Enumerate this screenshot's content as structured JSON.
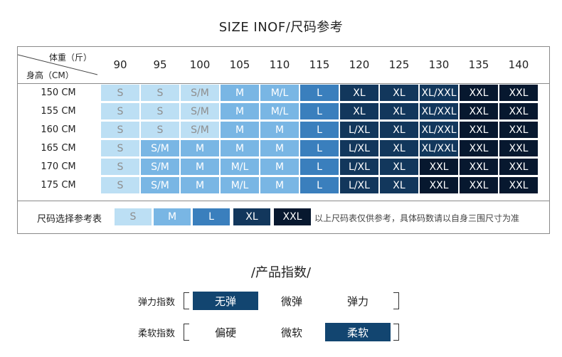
{
  "title": "SIZE INOF/尺码参考",
  "corner": {
    "weight": "体重（斤）",
    "height": "身高（CM）"
  },
  "weights": [
    "90",
    "95",
    "100",
    "105",
    "110",
    "115",
    "120",
    "125",
    "130",
    "135",
    "140"
  ],
  "rows": [
    {
      "height": "150 CM",
      "cells": [
        "S",
        "S",
        "S/M",
        "M",
        "M/L",
        "L",
        "XL",
        "XL",
        "XL/XXL",
        "XXL",
        "XXL"
      ]
    },
    {
      "height": "155 CM",
      "cells": [
        "S",
        "S",
        "S/M",
        "M",
        "M/L",
        "L",
        "XL",
        "XL",
        "XL/XXL",
        "XXL",
        "XXL"
      ]
    },
    {
      "height": "160 CM",
      "cells": [
        "S",
        "S",
        "S/M",
        "M",
        "M",
        "L",
        "L/XL",
        "XL",
        "XL/XXL",
        "XXL",
        "XXL"
      ]
    },
    {
      "height": "165 CM",
      "cells": [
        "S",
        "S/M",
        "M",
        "M",
        "M",
        "L",
        "L/XL",
        "XL",
        "XL/XXL",
        "XXL",
        "XXL"
      ]
    },
    {
      "height": "170 CM",
      "cells": [
        "S",
        "S/M",
        "M",
        "M/L",
        "M",
        "L",
        "L/XL",
        "XL",
        "XXL",
        "XXL",
        "XXL"
      ]
    },
    {
      "height": "175 CM",
      "cells": [
        "S",
        "S/M",
        "M",
        "M/L",
        "M",
        "L",
        "L/XL",
        "XL",
        "XXL",
        "XXL",
        "XXL"
      ]
    }
  ],
  "legend": {
    "label": "尺码选择参考表",
    "items": [
      "S",
      "M",
      "L",
      "XL",
      "XXL"
    ],
    "note": "以上尺码表仅供参考，具体码数请以自身三围尺寸为准"
  },
  "colors": {
    "s": "#bcdff4",
    "m": "#79b6e4",
    "l": "#3a7fbd",
    "xl": "#12375c",
    "xxl": "#07182f",
    "selected": "#124570"
  },
  "product_index": {
    "title": "/产品指数/",
    "elasticity": {
      "label": "弹力指数",
      "options": [
        "无弹",
        "微弹",
        "弹力"
      ],
      "selected": 0
    },
    "softness": {
      "label": "柔软指数",
      "options": [
        "偏硬",
        "微软",
        "柔软"
      ],
      "selected": 2
    }
  }
}
